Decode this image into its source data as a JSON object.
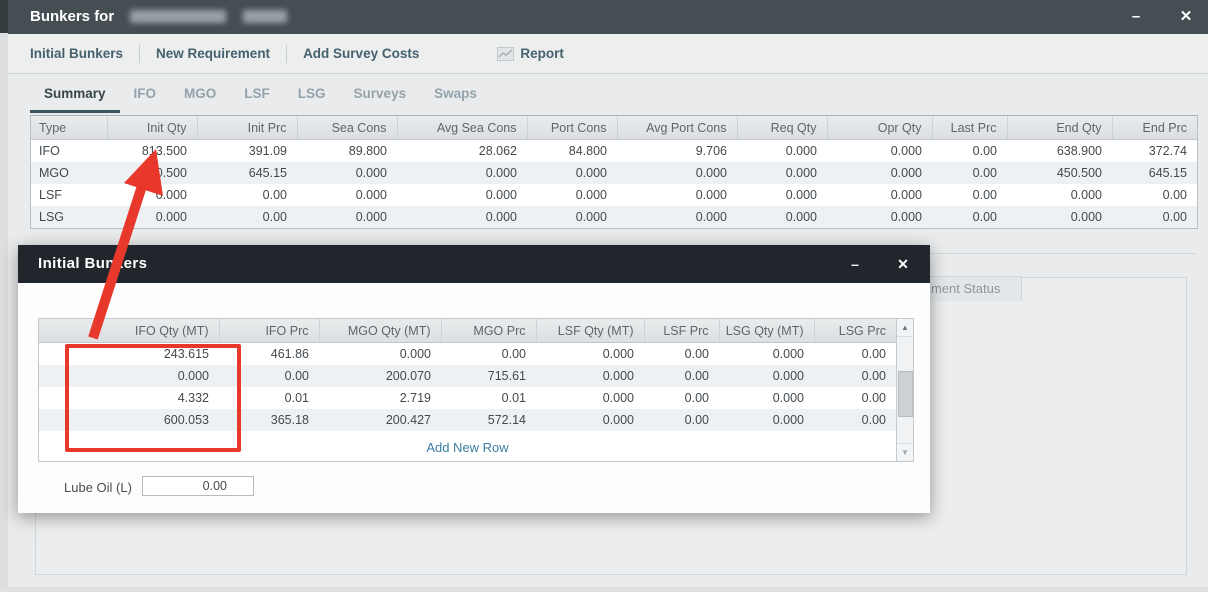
{
  "window": {
    "title": "Bunkers for",
    "minimize_glyph": "–",
    "close_glyph": "✕"
  },
  "toolbar": {
    "items": [
      "Initial Bunkers",
      "New Requirement",
      "Add Survey Costs"
    ],
    "report": {
      "label": "Report",
      "icon": "line-chart-icon"
    }
  },
  "tabs": {
    "active": "Summary",
    "items": [
      "Summary",
      "IFO",
      "MGO",
      "LSF",
      "LSG",
      "Surveys",
      "Swaps"
    ]
  },
  "summary_table": {
    "columns": [
      "Type",
      "Init Qty",
      "Init Prc",
      "Sea Cons",
      "Avg Sea Cons",
      "Port Cons",
      "Avg Port Cons",
      "Req Qty",
      "Opr Qty",
      "Last Prc",
      "End Qty",
      "End Prc"
    ],
    "rows": [
      [
        "IFO",
        "813.500",
        "391.09",
        "89.800",
        "28.062",
        "84.800",
        "9.706",
        "0.000",
        "0.000",
        "0.00",
        "638.900",
        "372.74"
      ],
      [
        "MGO",
        "450.500",
        "645.15",
        "0.000",
        "0.000",
        "0.000",
        "0.000",
        "0.000",
        "0.000",
        "0.00",
        "450.500",
        "645.15"
      ],
      [
        "LSF",
        "0.000",
        "0.00",
        "0.000",
        "0.000",
        "0.000",
        "0.000",
        "0.000",
        "0.000",
        "0.00",
        "0.000",
        "0.00"
      ],
      [
        "LSG",
        "0.000",
        "0.00",
        "0.000",
        "0.000",
        "0.000",
        "0.000",
        "0.000",
        "0.000",
        "0.00",
        "0.000",
        "0.00"
      ]
    ]
  },
  "background": {
    "partial_panel_tab": "ment Status"
  },
  "dialog": {
    "title": "Initial Bunkers",
    "minimize_glyph": "–",
    "close_glyph": "✕",
    "grid": {
      "columns": [
        "IFO Qty (MT)",
        "IFO Prc",
        "MGO Qty (MT)",
        "MGO Prc",
        "LSF Qty (MT)",
        "LSF Prc",
        "LSG Qty (MT)",
        "LSG Prc"
      ],
      "rows": [
        [
          "243.615",
          "461.86",
          "0.000",
          "0.00",
          "0.000",
          "0.00",
          "0.000",
          "0.00"
        ],
        [
          "0.000",
          "0.00",
          "200.070",
          "715.61",
          "0.000",
          "0.00",
          "0.000",
          "0.00"
        ],
        [
          "4.332",
          "0.01",
          "2.719",
          "0.01",
          "0.000",
          "0.00",
          "0.000",
          "0.00"
        ],
        [
          "600.053",
          "365.18",
          "200.427",
          "572.14",
          "0.000",
          "0.00",
          "0.000",
          "0.00"
        ]
      ],
      "add_row_label": "Add New Row"
    },
    "scrollbar": {
      "up_glyph": "▲",
      "down_glyph": "▼"
    },
    "lube_oil": {
      "label": "Lube Oil (L)",
      "value": "0.00"
    }
  },
  "annotations": {
    "color": "#e8372b",
    "rectangle_highlights": "IFO Qty (MT) column values",
    "arrow_points_to": "Init Qty 813.500"
  }
}
